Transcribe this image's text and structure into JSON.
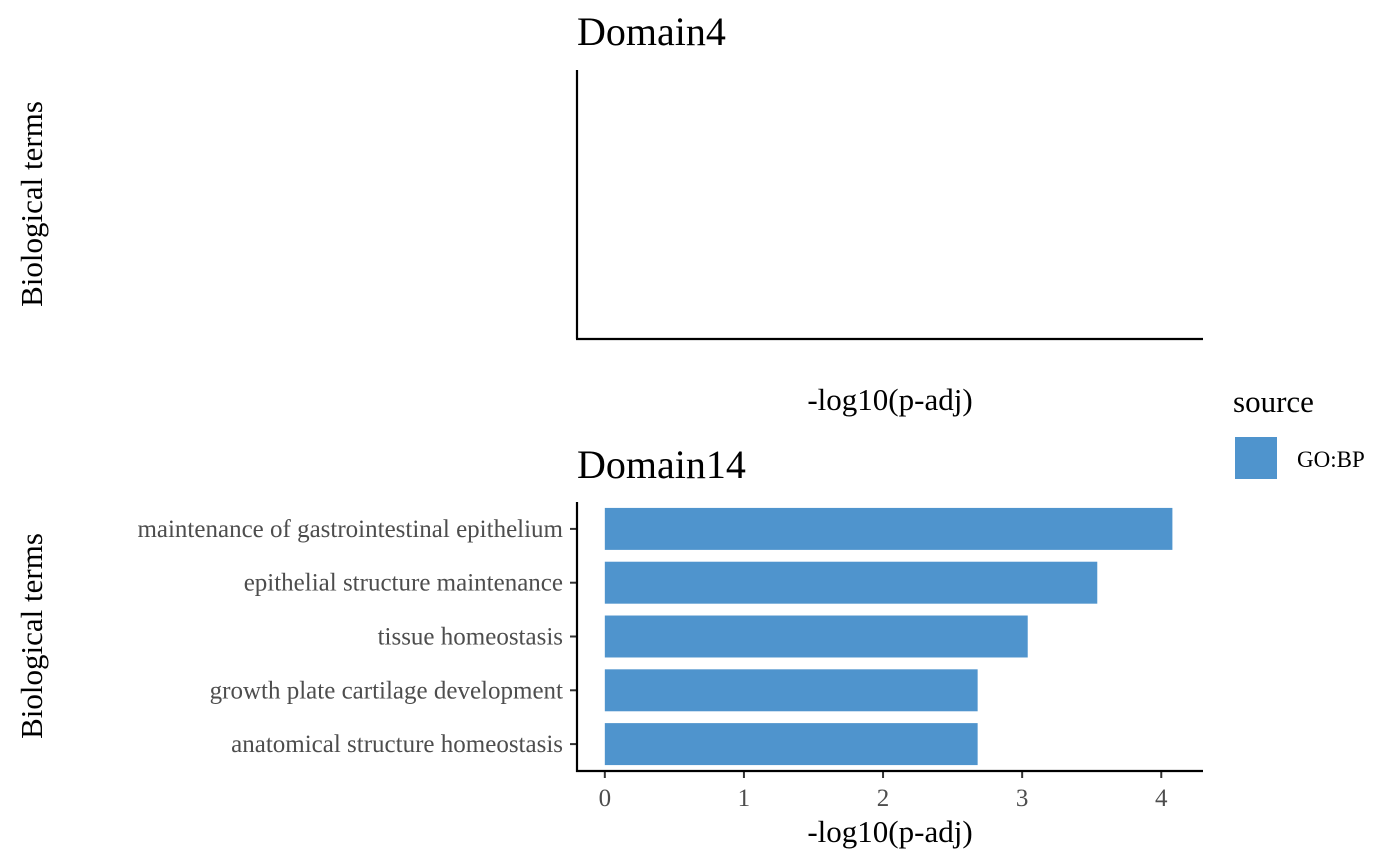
{
  "legend": {
    "title": "source",
    "items": [
      {
        "label": "GO:BP",
        "color": "#4F94CD"
      }
    ]
  },
  "chart_data": [
    {
      "type": "bar",
      "orientation": "horizontal",
      "title": "Domain4",
      "xlabel": "-log10(p-adj)",
      "ylabel": "Biological terms",
      "categories": [],
      "values": [],
      "grid": false
    },
    {
      "type": "bar",
      "orientation": "horizontal",
      "title": "Domain14",
      "xlabel": "-log10(p-adj)",
      "ylabel": "Biological terms",
      "categories": [
        "maintenance of gastrointestinal epithelium",
        "epithelial structure maintenance",
        "tissue homeostasis",
        "growth plate cartilage development",
        "anatomical structure homeostasis"
      ],
      "values": [
        4.08,
        3.54,
        3.04,
        2.68,
        2.68
      ],
      "series": [
        {
          "name": "GO:BP",
          "values": [
            4.08,
            3.54,
            3.04,
            2.68,
            2.68
          ]
        }
      ],
      "xticks": [
        0,
        1,
        2,
        3,
        4
      ],
      "xlim": [
        -0.2,
        4.3
      ],
      "grid": false
    }
  ]
}
